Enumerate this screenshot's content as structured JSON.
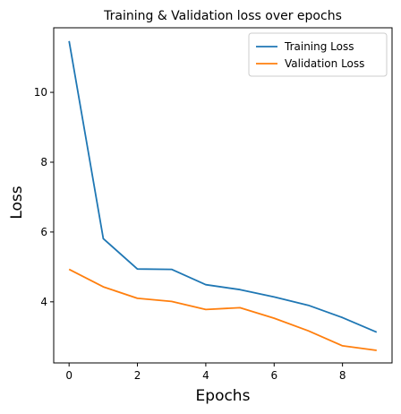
{
  "chart_data": {
    "type": "line",
    "title": "Training & Validation loss over epochs",
    "xlabel": "Epochs",
    "ylabel": "Loss",
    "x": [
      0,
      1,
      2,
      3,
      4,
      5,
      6,
      7,
      8,
      9
    ],
    "xlim": [
      -0.45,
      9.45
    ],
    "ylim": [
      2.25,
      11.85
    ],
    "xticks": [
      0,
      2,
      4,
      6,
      8
    ],
    "yticks": [
      4,
      6,
      8,
      10
    ],
    "grid": false,
    "legend_position": "top-right",
    "series": [
      {
        "name": "Training Loss",
        "color": "#1f77b4",
        "values": [
          11.47,
          5.81,
          4.94,
          4.93,
          4.49,
          4.35,
          4.14,
          3.9,
          3.55,
          3.13
        ]
      },
      {
        "name": "Validation Loss",
        "color": "#ff7f0e",
        "values": [
          4.93,
          4.43,
          4.1,
          4.01,
          3.78,
          3.83,
          3.53,
          3.17,
          2.74,
          2.61
        ]
      }
    ]
  }
}
